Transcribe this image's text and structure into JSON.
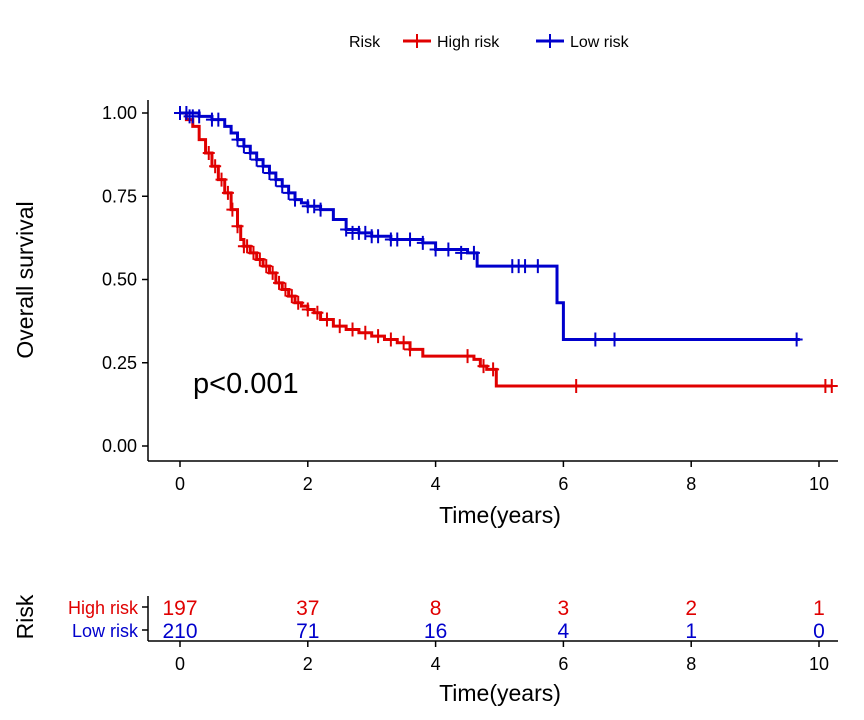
{
  "chart_data": [
    {
      "type": "line",
      "subtype": "kaplan-meier",
      "ylabel": "Overall survival",
      "xlabel": "Time(years)",
      "xlim": [
        -0.5,
        10.3
      ],
      "ylim": [
        -0.04,
        1.04
      ],
      "x_ticks": [
        0,
        2,
        4,
        6,
        8,
        10
      ],
      "y_ticks": [
        0,
        0.25,
        0.5,
        0.75,
        1.0
      ],
      "y_tick_labels": [
        "0.00",
        "0.25",
        "0.50",
        "0.75",
        "1.00"
      ],
      "x_tick_labels": [
        "0",
        "2",
        "4",
        "6",
        "8",
        "10"
      ],
      "annotation": "p<0.001",
      "legend": {
        "title": "Risk",
        "position": "top",
        "entries": [
          {
            "name": "High risk",
            "color": "#e00000"
          },
          {
            "name": "Low risk",
            "color": "#0000cc"
          }
        ]
      },
      "series": [
        {
          "name": "High risk",
          "color": "#e00000",
          "x": [
            0,
            0.1,
            0.2,
            0.3,
            0.4,
            0.5,
            0.6,
            0.7,
            0.8,
            0.9,
            0.95,
            1.0,
            1.1,
            1.2,
            1.3,
            1.4,
            1.5,
            1.6,
            1.7,
            1.8,
            1.9,
            2.0,
            2.1,
            2.2,
            2.4,
            2.6,
            2.8,
            3.0,
            3.2,
            3.4,
            3.6,
            3.8,
            4.6,
            4.7,
            4.8,
            4.95,
            6.0,
            10.2
          ],
          "y": [
            1.0,
            0.98,
            0.96,
            0.92,
            0.88,
            0.84,
            0.8,
            0.76,
            0.71,
            0.66,
            0.62,
            0.6,
            0.58,
            0.56,
            0.54,
            0.52,
            0.49,
            0.47,
            0.45,
            0.43,
            0.42,
            0.41,
            0.4,
            0.38,
            0.36,
            0.35,
            0.34,
            0.33,
            0.32,
            0.31,
            0.29,
            0.27,
            0.26,
            0.24,
            0.23,
            0.18,
            0.18,
            0.18
          ],
          "censor_x": [
            0.45,
            0.55,
            0.65,
            0.75,
            0.82,
            0.9,
            1.0,
            1.05,
            1.15,
            1.25,
            1.35,
            1.45,
            1.55,
            1.65,
            1.75,
            1.85,
            2.0,
            2.15,
            2.3,
            2.5,
            2.7,
            2.9,
            3.1,
            3.3,
            3.5,
            3.6,
            4.5,
            4.75,
            4.9,
            6.2,
            10.1,
            10.2
          ],
          "censor_y": [
            0.88,
            0.84,
            0.8,
            0.76,
            0.71,
            0.66,
            0.6,
            0.6,
            0.58,
            0.56,
            0.54,
            0.52,
            0.49,
            0.47,
            0.45,
            0.43,
            0.41,
            0.4,
            0.38,
            0.36,
            0.35,
            0.34,
            0.33,
            0.32,
            0.31,
            0.29,
            0.27,
            0.24,
            0.23,
            0.18,
            0.18,
            0.18
          ]
        },
        {
          "name": "Low risk",
          "color": "#0000cc",
          "x": [
            0,
            0.3,
            0.5,
            0.7,
            0.8,
            0.9,
            1.0,
            1.1,
            1.2,
            1.3,
            1.4,
            1.5,
            1.6,
            1.7,
            1.8,
            1.9,
            2.0,
            2.2,
            2.4,
            2.6,
            2.8,
            3.0,
            3.3,
            3.8,
            4.0,
            4.5,
            4.65,
            5.8,
            5.9,
            6.0,
            6.5,
            9.7
          ],
          "y": [
            1.0,
            0.99,
            0.98,
            0.96,
            0.94,
            0.92,
            0.9,
            0.88,
            0.86,
            0.84,
            0.82,
            0.8,
            0.78,
            0.76,
            0.74,
            0.73,
            0.72,
            0.71,
            0.68,
            0.65,
            0.64,
            0.63,
            0.62,
            0.61,
            0.59,
            0.58,
            0.54,
            0.54,
            0.43,
            0.32,
            0.32,
            0.32
          ],
          "censor_x": [
            0.0,
            0.1,
            0.15,
            0.2,
            0.3,
            0.5,
            0.6,
            0.9,
            1.0,
            1.1,
            1.2,
            1.3,
            1.4,
            1.5,
            1.6,
            1.7,
            1.8,
            2.0,
            2.1,
            2.2,
            2.6,
            2.7,
            2.8,
            2.9,
            3.0,
            3.1,
            3.3,
            3.4,
            3.6,
            3.8,
            4.0,
            4.2,
            4.4,
            4.6,
            5.2,
            5.3,
            5.4,
            5.6,
            6.5,
            6.8,
            9.65
          ],
          "censor_y": [
            1.0,
            1.0,
            0.99,
            0.99,
            0.99,
            0.98,
            0.98,
            0.92,
            0.9,
            0.88,
            0.86,
            0.84,
            0.82,
            0.8,
            0.78,
            0.76,
            0.74,
            0.72,
            0.72,
            0.71,
            0.65,
            0.64,
            0.64,
            0.64,
            0.63,
            0.63,
            0.62,
            0.62,
            0.62,
            0.61,
            0.59,
            0.59,
            0.58,
            0.58,
            0.54,
            0.54,
            0.54,
            0.54,
            0.32,
            0.32,
            0.32
          ]
        }
      ]
    },
    {
      "type": "table",
      "subtype": "number-at-risk",
      "ylabel": "Risk",
      "xlabel": "Time(years)",
      "x_ticks": [
        0,
        2,
        4,
        6,
        8,
        10
      ],
      "x_tick_labels": [
        "0",
        "2",
        "4",
        "6",
        "8",
        "10"
      ],
      "rows": [
        {
          "name": "High risk",
          "color": "#e00000",
          "values": [
            197,
            37,
            8,
            3,
            2,
            1
          ]
        },
        {
          "name": "Low risk",
          "color": "#0000cc",
          "values": [
            210,
            71,
            16,
            4,
            1,
            0
          ]
        }
      ]
    }
  ]
}
